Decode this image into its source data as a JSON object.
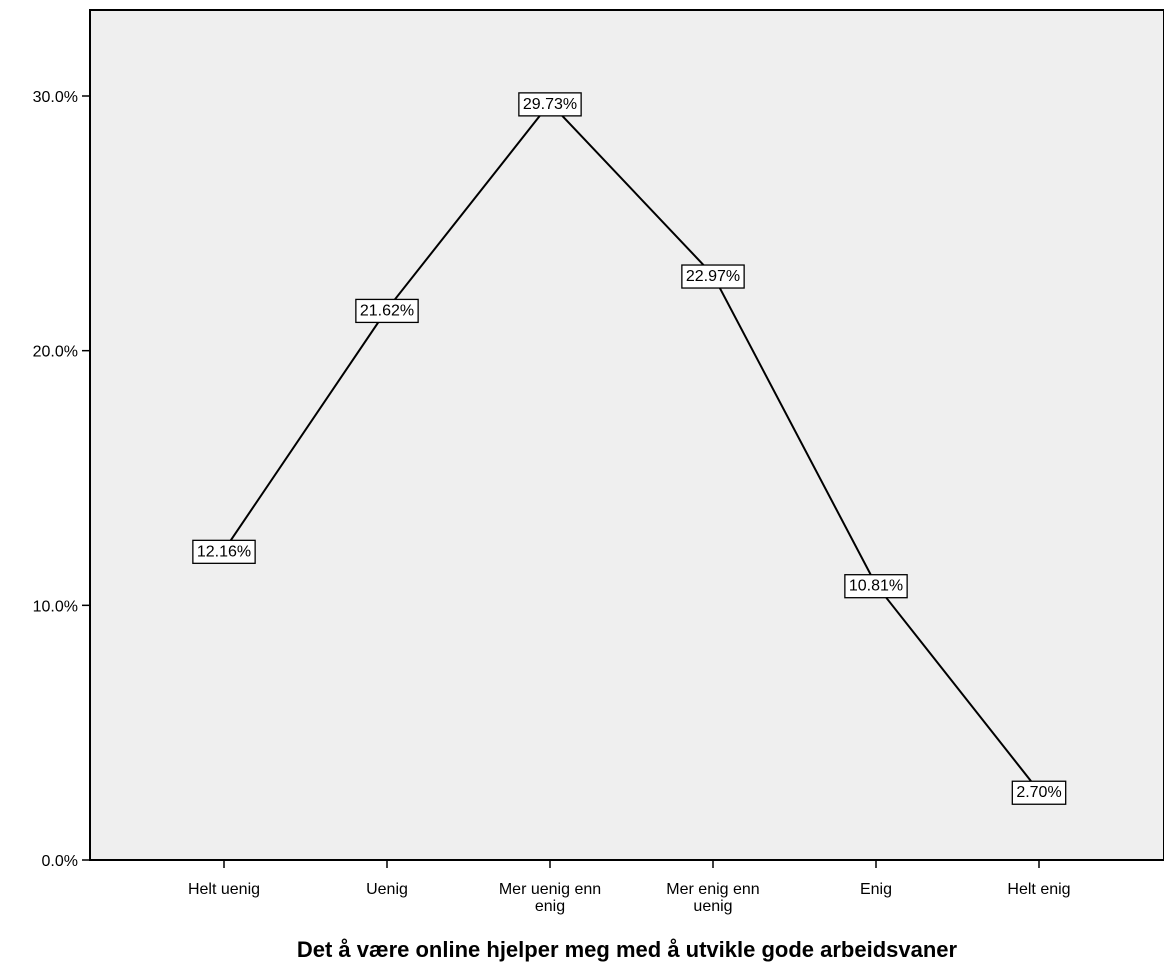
{
  "chart_data": {
    "type": "line",
    "title": "",
    "xlabel": "Det å være online hjelper meg med å utvikle gode arbeidsvaner",
    "ylabel": "",
    "categories": [
      [
        "Helt uenig"
      ],
      [
        "Uenig"
      ],
      [
        "Mer uenig enn",
        "enig"
      ],
      [
        "Mer enig enn",
        "uenig"
      ],
      [
        "Enig"
      ],
      [
        "Helt enig"
      ]
    ],
    "series": [
      {
        "values": [
          12.16,
          21.62,
          29.73,
          22.97,
          10.81,
          2.7
        ],
        "data_labels": [
          "12.16%",
          "21.62%",
          "29.73%",
          "22.97%",
          "10.81%",
          "2.70%"
        ]
      }
    ],
    "ylim": [
      0,
      30
    ],
    "yticks": [
      0,
      10,
      20,
      30
    ],
    "ytick_labels": [
      "0.0%",
      "10.0%",
      "20.0%",
      "30.0%"
    ],
    "grid": false,
    "colors": {
      "plot_background": "#efefef",
      "line": "#000000",
      "frame": "#000000"
    }
  }
}
